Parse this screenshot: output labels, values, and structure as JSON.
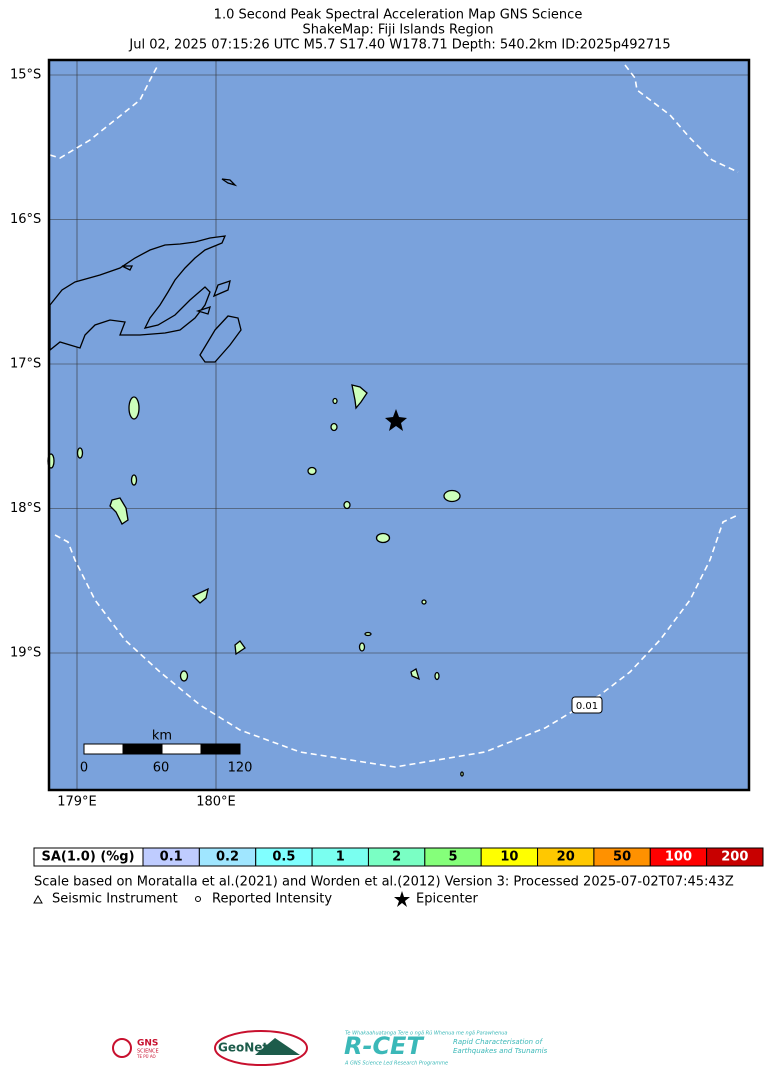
{
  "header": {
    "lines": [
      "1.0 Second Peak Spectral Acceleration Map GNS Science",
      "ShakeMap: Fiji Islands Region",
      "Jul 02, 2025 07:15:26 UTC M5.7 S17.40 W178.71 Depth: 540.2km ID:2025p492715"
    ]
  },
  "map": {
    "lat_labels": [
      "15°S",
      "16°S",
      "17°S",
      "18°S",
      "19°S"
    ],
    "lon_labels": [
      "179°E",
      "180°E"
    ],
    "scale_bar": {
      "unit": "km",
      "labels": [
        "0",
        "60",
        "120"
      ]
    },
    "contour_label": "0.01"
  },
  "legend": {
    "title": "SA(1.0) (%g)",
    "items": [
      {
        "label": "0.1",
        "color": "#bfccff"
      },
      {
        "label": "0.2",
        "color": "#a0e6ff"
      },
      {
        "label": "0.5",
        "color": "#80ffff"
      },
      {
        "label": "1",
        "color": "#7afff0"
      },
      {
        "label": "2",
        "color": "#7affc4"
      },
      {
        "label": "5",
        "color": "#85ff7a"
      },
      {
        "label": "10",
        "color": "#ffff00"
      },
      {
        "label": "20",
        "color": "#ffc800"
      },
      {
        "label": "50",
        "color": "#ff9100"
      },
      {
        "label": "100",
        "color": "#ff0000"
      },
      {
        "label": "200",
        "color": "#c80000"
      }
    ],
    "note": "Scale based on Moratalla et al.(2021) and Worden et al.(2012)   Version 3: Processed 2025-07-02T07:45:43Z",
    "symbols": [
      "Seismic Instrument",
      "Reported Intensity",
      "Epicenter"
    ]
  },
  "logos": {
    "gns": "GNS",
    "gns_sub": "SCIENCE",
    "gns_maori": "TE PŪ AO",
    "geonet": "GeoNet",
    "rcet": "R-CET",
    "rcet_top": "Te Whakaahuatanga Tere o ngā Rū Whenua me ngā Parawhenua",
    "rcet_side1": "Rapid Characterisation of",
    "rcet_side2": "Earthquakes and Tsunamis",
    "rcet_bottom": "A GNS Science Led Research Programme"
  }
}
